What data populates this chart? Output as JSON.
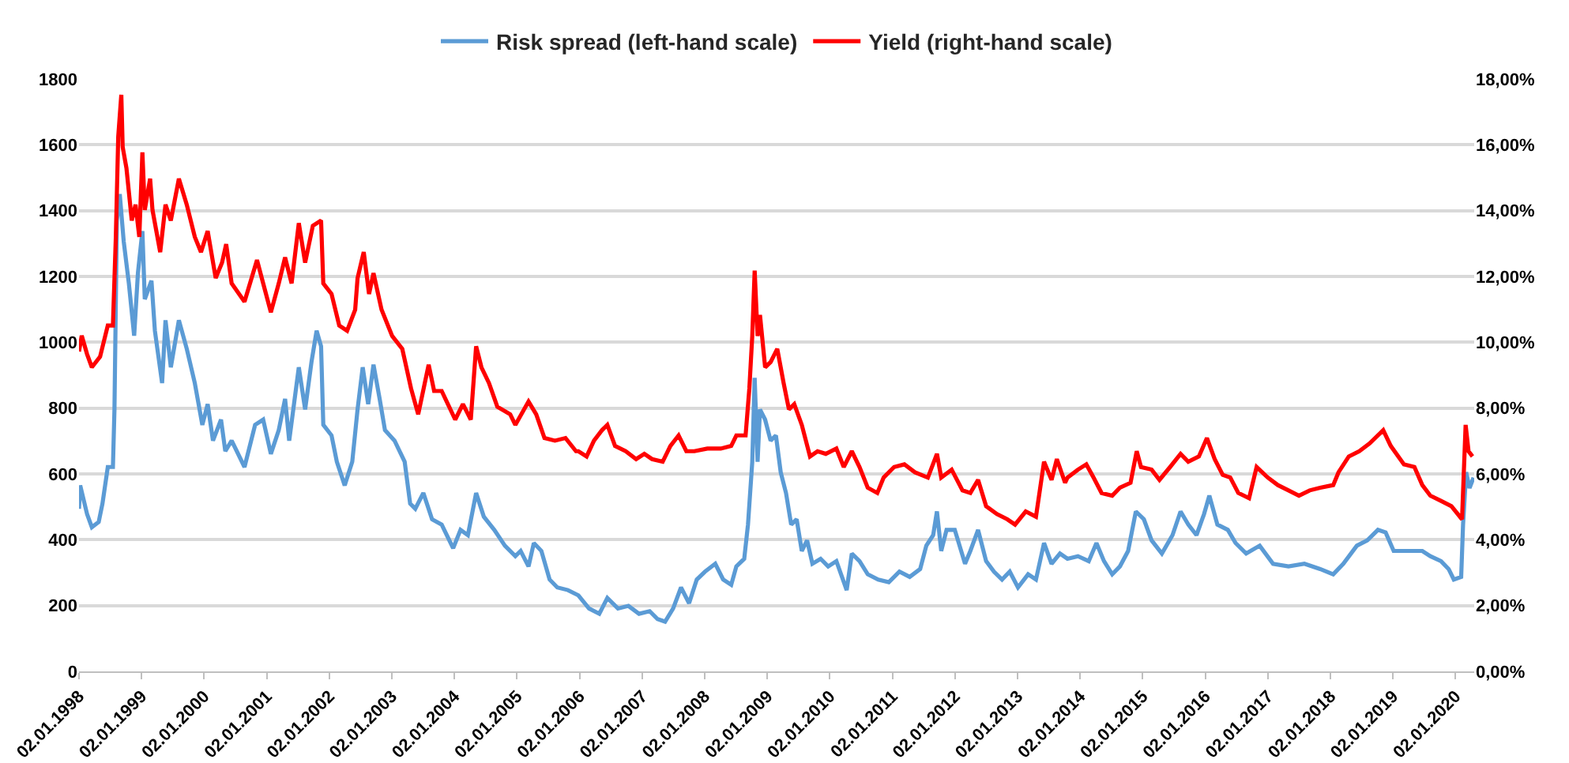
{
  "chart_data": {
    "type": "line",
    "legend": "top",
    "grid": "y",
    "marker": "none",
    "line_style": "solid",
    "xlim": [
      "1998-01-02",
      "2020-04-20"
    ],
    "xticks": [
      {
        "value": "1998-01-02",
        "label": "02.01.1998"
      },
      {
        "value": "1999-01-02",
        "label": "02.01.1999"
      },
      {
        "value": "2000-01-02",
        "label": "02.01.2000"
      },
      {
        "value": "2001-01-02",
        "label": "02.01.2001"
      },
      {
        "value": "2002-01-02",
        "label": "02.01.2002"
      },
      {
        "value": "2003-01-02",
        "label": "02.01.2003"
      },
      {
        "value": "2004-01-02",
        "label": "02.01.2004"
      },
      {
        "value": "2005-01-02",
        "label": "02.01.2005"
      },
      {
        "value": "2006-01-02",
        "label": "02.01.2006"
      },
      {
        "value": "2007-01-02",
        "label": "02.01.2007"
      },
      {
        "value": "2008-01-02",
        "label": "02.01.2008"
      },
      {
        "value": "2009-01-02",
        "label": "02.01.2009"
      },
      {
        "value": "2010-01-02",
        "label": "02.01.2010"
      },
      {
        "value": "2011-01-02",
        "label": "02.01.2011"
      },
      {
        "value": "2012-01-02",
        "label": "02.01.2012"
      },
      {
        "value": "2013-01-02",
        "label": "02.01.2013"
      },
      {
        "value": "2014-01-02",
        "label": "02.01.2014"
      },
      {
        "value": "2015-01-02",
        "label": "02.01.2015"
      },
      {
        "value": "2016-01-02",
        "label": "02.01.2016"
      },
      {
        "value": "2017-01-02",
        "label": "02.01.2017"
      },
      {
        "value": "2018-01-02",
        "label": "02.01.2018"
      },
      {
        "value": "2019-01-02",
        "label": "02.01.2019"
      },
      {
        "value": "2020-01-02",
        "label": "02.01.2020"
      }
    ],
    "ylim": [
      0,
      1800
    ],
    "yticks": [
      0,
      200,
      400,
      600,
      800,
      1000,
      1200,
      1400,
      1600,
      1800
    ],
    "y2lim": [
      0,
      18
    ],
    "y2ticks": [
      {
        "value": 0,
        "label": "0,00%"
      },
      {
        "value": 2,
        "label": "2,00%"
      },
      {
        "value": 4,
        "label": "4,00%"
      },
      {
        "value": 6,
        "label": "6,00%"
      },
      {
        "value": 8,
        "label": "8,00%"
      },
      {
        "value": 10,
        "label": "10,00%"
      },
      {
        "value": 12,
        "label": "12,00%"
      },
      {
        "value": 14,
        "label": "14,00%"
      },
      {
        "value": 16,
        "label": "16,00%"
      },
      {
        "value": 18,
        "label": "18,00%"
      }
    ],
    "series": [
      {
        "name": "Risk spread (left-hand scale)",
        "color": "#5b9bd5",
        "x": [
          "1998-01-02",
          "1998-01-09",
          "1998-02-18",
          "1998-03-18",
          "1998-04-27",
          "1998-05-19",
          "1998-06-19",
          "1998-07-19",
          "1998-07-28",
          "1998-08-11",
          "1998-08-28",
          "1998-09-20",
          "1998-10-20",
          "1998-11-20",
          "1998-12-12",
          "1999-01-07",
          "1999-01-21",
          "1999-03-01",
          "1999-03-21",
          "1999-05-02",
          "1999-05-22",
          "1999-06-22",
          "1999-08-08",
          "1999-09-23",
          "1999-11-09",
          "1999-12-23",
          "2000-01-23",
          "2000-02-23",
          "2000-04-10",
          "2000-05-05",
          "2000-06-11",
          "2000-08-25",
          "2000-10-26",
          "2000-12-12",
          "2001-01-26",
          "2001-03-13",
          "2001-04-19",
          "2001-05-13",
          "2001-07-08",
          "2001-08-14",
          "2001-09-20",
          "2001-10-20",
          "2001-11-15",
          "2001-11-28",
          "2002-01-15",
          "2002-02-15",
          "2002-04-02",
          "2002-05-16",
          "2002-06-16",
          "2002-07-16",
          "2002-08-17",
          "2002-09-17",
          "2002-10-23",
          "2002-11-23",
          "2003-01-18",
          "2003-03-18",
          "2003-04-19",
          "2003-05-19",
          "2003-07-05",
          "2003-08-25",
          "2003-10-20",
          "2003-12-26",
          "2004-02-07",
          "2004-03-21",
          "2004-05-08",
          "2004-06-22",
          "2004-08-22",
          "2004-10-23",
          "2004-12-23",
          "2005-01-23",
          "2005-03-10",
          "2005-04-10",
          "2005-05-24",
          "2005-07-11",
          "2005-08-25",
          "2005-10-26",
          "2005-12-26",
          "2006-02-26",
          "2006-04-27",
          "2006-06-13",
          "2006-08-14",
          "2006-10-14",
          "2006-12-15",
          "2007-02-15",
          "2007-04-02",
          "2007-05-16",
          "2007-07-02",
          "2007-08-17",
          "2007-10-03",
          "2007-11-17",
          "2008-01-04",
          "2008-03-04",
          "2008-04-19",
          "2008-06-05",
          "2008-07-05",
          "2008-08-20",
          "2008-09-11",
          "2008-10-06",
          "2008-10-20",
          "2008-11-06",
          "2008-11-20",
          "2008-12-20",
          "2009-01-21",
          "2009-02-21",
          "2009-03-21",
          "2009-04-21",
          "2009-05-21",
          "2009-06-22",
          "2009-07-22",
          "2009-08-22",
          "2009-09-22",
          "2009-11-09",
          "2009-12-23",
          "2010-02-09",
          "2010-04-10",
          "2010-05-10",
          "2010-06-24",
          "2010-08-11",
          "2010-10-11",
          "2010-12-12",
          "2011-02-12",
          "2011-04-13",
          "2011-06-13",
          "2011-07-19",
          "2011-08-28",
          "2011-09-19",
          "2011-10-14",
          "2011-11-14",
          "2012-01-01",
          "2012-03-01",
          "2012-04-01",
          "2012-05-16",
          "2012-07-02",
          "2012-08-17",
          "2012-10-03",
          "2012-11-17",
          "2013-01-04",
          "2013-03-04",
          "2013-04-19",
          "2013-06-05",
          "2013-07-19",
          "2013-09-06",
          "2013-10-20",
          "2013-12-20",
          "2014-02-21",
          "2014-04-07",
          "2014-05-21",
          "2014-07-08",
          "2014-08-22",
          "2014-10-09",
          "2014-11-23",
          "2015-01-09",
          "2015-02-23",
          "2015-04-24",
          "2015-06-25",
          "2015-08-11",
          "2015-09-25",
          "2015-11-12",
          "2015-12-26",
          "2016-01-26",
          "2016-03-13",
          "2016-05-13",
          "2016-06-27",
          "2016-08-28",
          "2016-11-15",
          "2017-02-01",
          "2017-05-02",
          "2017-08-03",
          "2017-11-03",
          "2018-01-18",
          "2018-03-18",
          "2018-06-05",
          "2018-08-05",
          "2018-10-06",
          "2018-11-20",
          "2019-01-06",
          "2019-04-07",
          "2019-06-22",
          "2019-08-08",
          "2019-10-09",
          "2019-11-23",
          "2019-12-23",
          "2020-02-04",
          "2020-02-15",
          "2020-03-04",
          "2020-03-24",
          "2020-04-16"
        ],
        "values": [
          494,
          565,
          478,
          438,
          454,
          510,
          621,
          621,
          796,
          1370,
          1450,
          1306,
          1179,
          1020,
          1211,
          1338,
          1131,
          1187,
          1035,
          876,
          1067,
          924,
          1067,
          980,
          876,
          749,
          812,
          701,
          765,
          669,
          701,
          621,
          749,
          765,
          661,
          733,
          828,
          701,
          924,
          796,
          940,
          1035,
          988,
          749,
          717,
          637,
          565,
          637,
          796,
          924,
          812,
          932,
          828,
          733,
          701,
          637,
          510,
          494,
          542,
          462,
          446,
          374,
          430,
          414,
          542,
          470,
          430,
          382,
          350,
          366,
          319,
          390,
          366,
          279,
          255,
          247,
          231,
          191,
          175,
          223,
          191,
          199,
          175,
          183,
          159,
          151,
          191,
          255,
          207,
          279,
          303,
          327,
          279,
          263,
          319,
          342,
          446,
          637,
          892,
          637,
          796,
          765,
          701,
          717,
          605,
          542,
          446,
          462,
          366,
          398,
          327,
          342,
          319,
          335,
          247,
          358,
          335,
          295,
          279,
          271,
          303,
          287,
          311,
          382,
          414,
          486,
          366,
          430,
          430,
          327,
          366,
          430,
          335,
          303,
          279,
          303,
          255,
          295,
          279,
          390,
          327,
          358,
          342,
          350,
          335,
          390,
          335,
          295,
          319,
          366,
          486,
          462,
          398,
          358,
          414,
          486,
          446,
          414,
          478,
          534,
          446,
          430,
          390,
          358,
          382,
          327,
          319,
          327,
          311,
          295,
          327,
          382,
          398,
          430,
          422,
          366,
          366,
          366,
          350,
          335,
          311,
          279,
          287,
          446,
          605,
          557,
          589
        ]
      },
      {
        "name": "Yield (right-hand scale)",
        "color": "#ff0000",
        "axis": "y2",
        "x": [
          "1998-01-02",
          "1998-01-18",
          "1998-02-18",
          "1998-03-18",
          "1998-05-05",
          "1998-06-19",
          "1998-07-19",
          "1998-08-05",
          "1998-08-19",
          "1998-09-06",
          "1998-09-14",
          "1998-10-06",
          "1998-11-06",
          "1998-11-28",
          "1998-12-20",
          "1999-01-07",
          "1999-01-21",
          "1999-02-21",
          "1999-03-07",
          "1999-04-21",
          "1999-05-22",
          "1999-06-22",
          "1999-08-08",
          "1999-09-23",
          "1999-11-09",
          "1999-12-15",
          "2000-01-23",
          "2000-03-10",
          "2000-04-16",
          "2000-05-10",
          "2000-06-11",
          "2000-08-25",
          "2000-11-06",
          "2000-12-12",
          "2001-01-26",
          "2001-03-13",
          "2001-04-19",
          "2001-05-27",
          "2001-07-08",
          "2001-08-14",
          "2001-09-28",
          "2001-11-15",
          "2001-11-28",
          "2002-01-15",
          "2002-03-01",
          "2002-04-16",
          "2002-06-02",
          "2002-06-16",
          "2002-07-22",
          "2002-08-22",
          "2002-09-17",
          "2002-11-03",
          "2003-01-04",
          "2003-03-04",
          "2003-04-24",
          "2003-06-05",
          "2003-08-05",
          "2003-09-06",
          "2003-10-20",
          "2004-01-07",
          "2004-02-21",
          "2004-04-07",
          "2004-05-08",
          "2004-06-08",
          "2004-07-22",
          "2004-09-09",
          "2004-11-23",
          "2004-12-23",
          "2005-03-10",
          "2005-04-24",
          "2005-06-11",
          "2005-08-11",
          "2005-10-12",
          "2005-12-12",
          "2005-12-26",
          "2006-02-12",
          "2006-03-27",
          "2006-05-13",
          "2006-06-13",
          "2006-07-28",
          "2006-09-28",
          "2006-11-28",
          "2007-01-15",
          "2007-03-01",
          "2007-05-02",
          "2007-06-16",
          "2007-08-03",
          "2007-09-17",
          "2007-11-03",
          "2008-01-18",
          "2008-04-05",
          "2008-06-05",
          "2008-07-05",
          "2008-08-28",
          "2008-09-19",
          "2008-10-06",
          "2008-10-20",
          "2008-11-06",
          "2008-11-20",
          "2008-12-20",
          "2009-01-21",
          "2009-03-01",
          "2009-04-07",
          "2009-05-08",
          "2009-06-08",
          "2009-07-22",
          "2009-09-08",
          "2009-10-22",
          "2009-12-09",
          "2010-02-09",
          "2010-03-24",
          "2010-05-10",
          "2010-06-24",
          "2010-08-11",
          "2010-10-06",
          "2010-11-12",
          "2011-01-12",
          "2011-03-13",
          "2011-05-13",
          "2011-07-28",
          "2011-09-19",
          "2011-10-14",
          "2011-12-14",
          "2012-02-15",
          "2012-04-01",
          "2012-05-16",
          "2012-07-02",
          "2012-09-03",
          "2012-11-03",
          "2012-12-18",
          "2013-02-18",
          "2013-04-19",
          "2013-06-05",
          "2013-07-19",
          "2013-08-19",
          "2013-10-06",
          "2013-10-20",
          "2013-12-20",
          "2014-02-07",
          "2014-03-21",
          "2014-05-07",
          "2014-07-08",
          "2014-08-22",
          "2014-10-23",
          "2014-11-28",
          "2014-12-23",
          "2015-02-23",
          "2015-04-10",
          "2015-06-11",
          "2015-08-11",
          "2015-09-25",
          "2015-11-26",
          "2016-01-12",
          "2016-02-26",
          "2016-04-13",
          "2016-05-27",
          "2016-07-13",
          "2016-09-14",
          "2016-10-28",
          "2017-01-01",
          "2017-03-01",
          "2017-05-02",
          "2017-07-02",
          "2017-09-03",
          "2017-11-03",
          "2018-01-18",
          "2018-02-18",
          "2018-04-19",
          "2018-06-19",
          "2018-08-19",
          "2018-11-06",
          "2018-12-20",
          "2019-03-07",
          "2019-05-07",
          "2019-06-22",
          "2019-08-08",
          "2019-10-09",
          "2019-12-09",
          "2020-02-09",
          "2020-03-01",
          "2020-03-18",
          "2020-04-10"
        ],
        "values": [
          9.72,
          10.2,
          9.64,
          9.24,
          9.56,
          10.51,
          10.51,
          13.2,
          16.25,
          17.52,
          15.93,
          15.29,
          13.7,
          14.18,
          13.2,
          15.77,
          14.02,
          14.97,
          14.02,
          12.74,
          14.18,
          13.7,
          14.97,
          14.18,
          13.2,
          12.74,
          13.38,
          11.95,
          12.42,
          12.98,
          11.79,
          11.23,
          12.5,
          11.79,
          10.91,
          11.79,
          12.58,
          11.79,
          13.62,
          12.42,
          13.54,
          13.7,
          11.79,
          11.47,
          10.51,
          10.35,
          10.99,
          11.95,
          12.74,
          11.47,
          12.1,
          10.99,
          10.19,
          9.8,
          8.6,
          7.81,
          9.32,
          8.52,
          8.52,
          7.65,
          8.12,
          7.65,
          9.88,
          9.24,
          8.76,
          8.04,
          7.81,
          7.49,
          8.2,
          7.81,
          7.09,
          7.01,
          7.09,
          6.69,
          6.69,
          6.53,
          7.01,
          7.33,
          7.49,
          6.85,
          6.69,
          6.45,
          6.61,
          6.45,
          6.37,
          6.85,
          7.17,
          6.69,
          6.69,
          6.77,
          6.77,
          6.85,
          7.17,
          7.17,
          8.6,
          10.19,
          12.18,
          10.19,
          10.83,
          9.24,
          9.4,
          9.8,
          8.76,
          7.96,
          8.12,
          7.49,
          6.53,
          6.69,
          6.61,
          6.77,
          6.21,
          6.69,
          6.21,
          5.58,
          5.42,
          5.89,
          6.21,
          6.29,
          6.05,
          5.89,
          6.61,
          5.89,
          6.13,
          5.5,
          5.42,
          5.82,
          5.02,
          4.78,
          4.62,
          4.46,
          4.86,
          4.7,
          6.37,
          5.82,
          6.45,
          5.73,
          5.89,
          6.13,
          6.29,
          5.89,
          5.42,
          5.34,
          5.58,
          5.73,
          6.69,
          6.21,
          6.13,
          5.82,
          6.21,
          6.61,
          6.37,
          6.53,
          7.09,
          6.45,
          5.97,
          5.89,
          5.42,
          5.26,
          6.21,
          5.89,
          5.66,
          5.5,
          5.34,
          5.5,
          5.58,
          5.66,
          6.05,
          6.53,
          6.69,
          6.93,
          7.33,
          6.85,
          6.29,
          6.21,
          5.66,
          5.34,
          5.18,
          5.02,
          4.62,
          7.49,
          6.69,
          6.53
        ]
      }
    ]
  }
}
